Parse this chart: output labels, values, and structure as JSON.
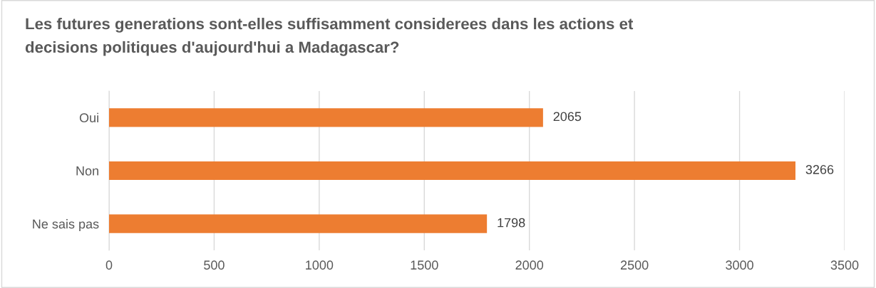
{
  "chart_data": {
    "type": "bar",
    "orientation": "horizontal",
    "title": "Les futures generations sont-elles suffisamment considerees dans les actions et\ndecisions politiques d'aujourd'hui a Madagascar?",
    "categories": [
      "Oui",
      "Non",
      "Ne sais pas"
    ],
    "values": [
      2065,
      3266,
      1798
    ],
    "color": "#ed7d31",
    "xlim": [
      0,
      3500
    ],
    "xticks": [
      0,
      500,
      1000,
      1500,
      2000,
      2500,
      3000,
      3500
    ],
    "grid": "x",
    "data_labels": true
  }
}
